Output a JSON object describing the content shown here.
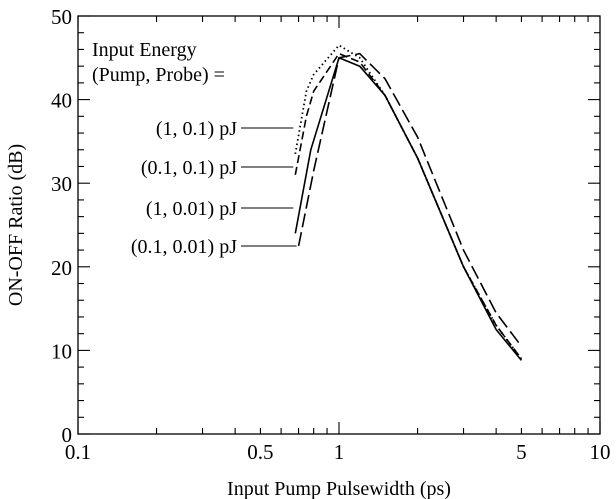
{
  "chart_data": {
    "type": "line",
    "xscale": "log",
    "xlim": [
      0.1,
      10
    ],
    "ylim": [
      0,
      50
    ],
    "xlabel": "Input Pump Pulsewidth (ps)",
    "ylabel": "ON-OFF Ratio (dB)",
    "x_ticks": [
      {
        "value": 0.1,
        "label": "0.1"
      },
      {
        "value": 0.5,
        "label": "0.5"
      },
      {
        "value": 1,
        "label": "1"
      },
      {
        "value": 5,
        "label": "5"
      },
      {
        "value": 10,
        "label": "10"
      }
    ],
    "y_ticks": [
      {
        "value": 0,
        "label": "0"
      },
      {
        "value": 10,
        "label": "10"
      },
      {
        "value": 20,
        "label": "20"
      },
      {
        "value": 30,
        "label": "30"
      },
      {
        "value": 40,
        "label": "40"
      },
      {
        "value": 50,
        "label": "50"
      }
    ],
    "legend_header": [
      "Input Energy",
      "(Pump, Probe) ="
    ],
    "series": [
      {
        "name": "(1, 0.1) pJ",
        "style": "dotted",
        "points": [
          [
            0.68,
            33.5
          ],
          [
            0.75,
            41
          ],
          [
            0.8,
            43
          ],
          [
            1.0,
            46.5
          ],
          [
            1.2,
            45
          ],
          [
            1.5,
            40.5
          ],
          [
            2.0,
            33
          ],
          [
            3.0,
            20
          ],
          [
            4.0,
            13
          ],
          [
            5.0,
            9
          ]
        ]
      },
      {
        "name": "(0.1, 0.1) pJ",
        "style": "dashed",
        "points": [
          [
            0.68,
            31
          ],
          [
            0.75,
            38
          ],
          [
            0.8,
            41
          ],
          [
            1.0,
            45.5
          ],
          [
            1.2,
            44.5
          ],
          [
            1.5,
            40.5
          ],
          [
            2.0,
            33
          ],
          [
            3.0,
            20
          ],
          [
            4.0,
            13
          ],
          [
            5.0,
            9
          ]
        ]
      },
      {
        "name": "(1, 0.01) pJ",
        "style": "solid",
        "points": [
          [
            0.68,
            24
          ],
          [
            0.78,
            34
          ],
          [
            1.0,
            45
          ],
          [
            1.2,
            44
          ],
          [
            1.5,
            40.5
          ],
          [
            2.0,
            33
          ],
          [
            3.0,
            20
          ],
          [
            4.0,
            12.5
          ],
          [
            5.0,
            8.8
          ]
        ]
      },
      {
        "name": "(0.1, 0.01) pJ",
        "style": "long-dash",
        "points": [
          [
            0.7,
            22.5
          ],
          [
            0.8,
            31.5
          ],
          [
            1.0,
            45
          ],
          [
            1.2,
            45.5
          ],
          [
            1.5,
            42.5
          ],
          [
            2.0,
            35.5
          ],
          [
            3.0,
            22
          ],
          [
            4.0,
            14.5
          ],
          [
            5.0,
            10.5
          ]
        ]
      }
    ]
  }
}
